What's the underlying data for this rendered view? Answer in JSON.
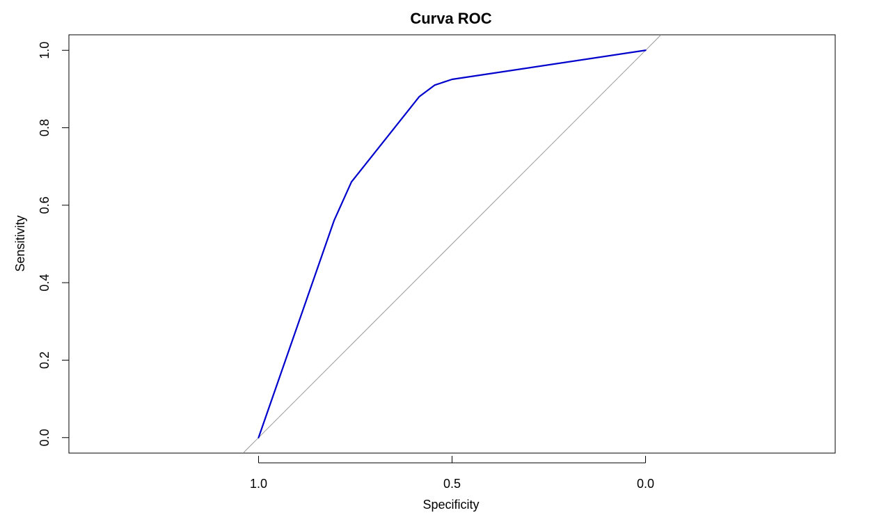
{
  "chart_data": {
    "type": "line",
    "title": "Curva ROC",
    "xlabel": "Specificity",
    "ylabel": "Sensitivity",
    "x_reversed": true,
    "xlim": [
      1.49,
      -0.49
    ],
    "ylim": [
      -0.04,
      1.04
    ],
    "x_ticks": [
      {
        "value": 1.0,
        "label": "1.0"
      },
      {
        "value": 0.5,
        "label": "0.5"
      },
      {
        "value": 0.0,
        "label": "0.0"
      }
    ],
    "y_ticks": [
      {
        "value": 0.0,
        "label": "0.0"
      },
      {
        "value": 0.2,
        "label": "0.2"
      },
      {
        "value": 0.4,
        "label": "0.4"
      },
      {
        "value": 0.6,
        "label": "0.6"
      },
      {
        "value": 0.8,
        "label": "0.8"
      },
      {
        "value": 1.0,
        "label": "1.0"
      }
    ],
    "grid": false,
    "series": [
      {
        "color": "#0000cd",
        "x": [
          1.0,
          0.805,
          0.76,
          0.585,
          0.545,
          0.5,
          0.0
        ],
        "y": [
          0.0,
          0.56,
          0.66,
          0.88,
          0.91,
          0.925,
          1.0
        ]
      }
    ],
    "reference_line": {
      "description": "diagonal where specificity + sensitivity = 1",
      "color": "#9a9a9a"
    }
  }
}
